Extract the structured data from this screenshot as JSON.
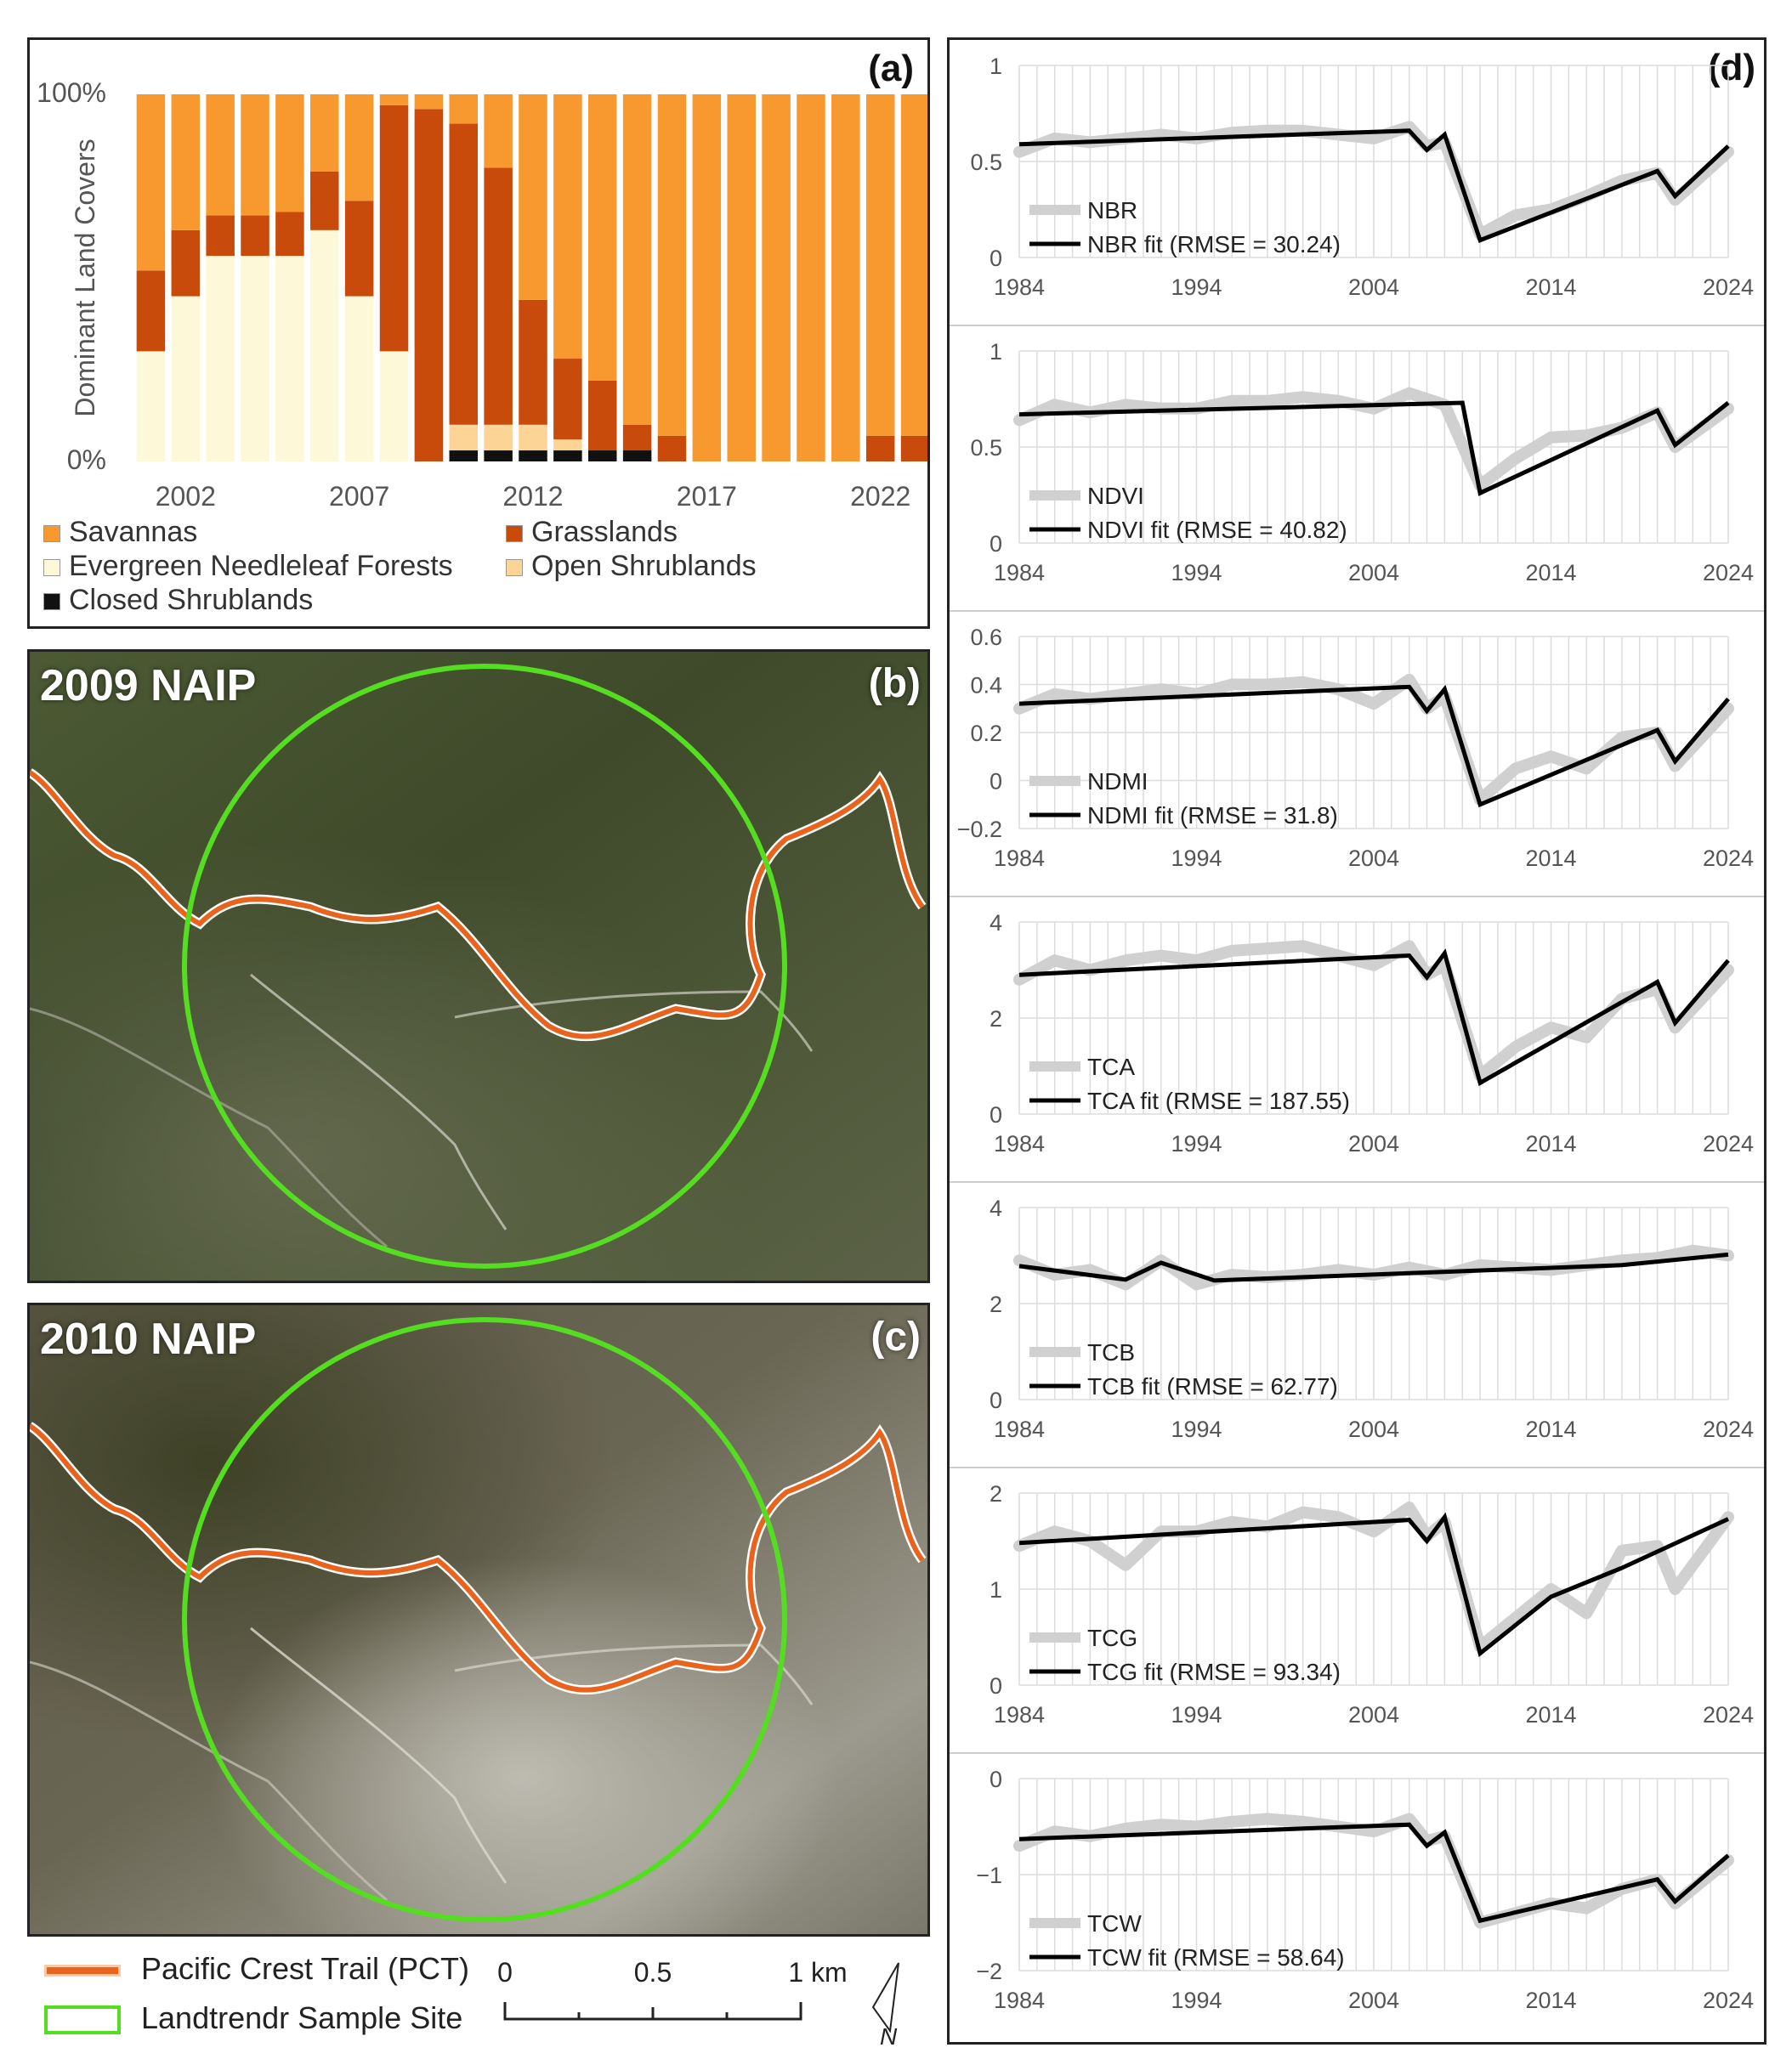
{
  "colors": {
    "savannas": "#F7992F",
    "grasslands": "#C84B0C",
    "evergreen": "#FDF8D8",
    "open_shrub": "#FBD496",
    "closed_shrub": "#111111",
    "observed": "#D0D0D0",
    "fit": "#000000",
    "trail": "#E8641E",
    "site": "#55DD22"
  },
  "panel_a": {
    "tag": "(a)",
    "legend": [
      {
        "key": "savannas",
        "label": "Savannas"
      },
      {
        "key": "grasslands",
        "label": "Grasslands"
      },
      {
        "key": "evergreen",
        "label": "Evergreen Needleleaf Forests"
      },
      {
        "key": "open_shrub",
        "label": "Open Shrublands"
      },
      {
        "key": "closed_shrub",
        "label": "Closed Shrublands"
      }
    ]
  },
  "panel_b": {
    "title": "2009 NAIP",
    "tag": "(b)"
  },
  "panel_c": {
    "title": "2010 NAIP",
    "tag": "(c)"
  },
  "panel_d": {
    "tag": "(d)"
  },
  "map_legend": {
    "trail_label": "Pacific Crest Trail (PCT)",
    "site_label": "Landtrendr Sample Site",
    "scale_labels": [
      "0",
      "0.5",
      "1 km"
    ],
    "north_label": "N"
  },
  "chart_data": [
    {
      "type": "bar",
      "stacked": true,
      "ylabel": "Dominant Land Covers",
      "yticks": [
        "0%",
        "100%"
      ],
      "xticks": [
        "2002",
        "2007",
        "2012",
        "2017",
        "2022"
      ],
      "categories": [
        "2001",
        "2002",
        "2003",
        "2004",
        "2005",
        "2006",
        "2007",
        "2008",
        "2009",
        "2010",
        "2011",
        "2012",
        "2013",
        "2014",
        "2015",
        "2016",
        "2017",
        "2018",
        "2019",
        "2020",
        "2021",
        "2022",
        "2023"
      ],
      "series": [
        {
          "name": "Closed Shrublands",
          "key": "closed_shrub",
          "values": [
            0,
            0,
            0,
            0,
            0,
            0,
            0,
            0,
            0,
            3,
            3,
            3,
            3,
            3,
            3,
            0,
            0,
            0,
            0,
            0,
            0,
            0,
            0
          ]
        },
        {
          "name": "Open Shrublands",
          "key": "open_shrub",
          "values": [
            0,
            0,
            0,
            0,
            0,
            0,
            0,
            0,
            0,
            7,
            7,
            7,
            3,
            0,
            0,
            0,
            0,
            0,
            0,
            0,
            0,
            0,
            0
          ]
        },
        {
          "name": "Evergreen Needleleaf Forests",
          "key": "evergreen",
          "values": [
            30,
            45,
            56,
            56,
            56,
            63,
            45,
            30,
            0,
            0,
            0,
            0,
            0,
            0,
            0,
            0,
            0,
            0,
            0,
            0,
            0,
            0,
            0
          ]
        },
        {
          "name": "Grasslands",
          "key": "grasslands",
          "values": [
            22,
            18,
            11,
            11,
            12,
            16,
            26,
            67,
            96,
            82,
            70,
            34,
            22,
            19,
            7,
            7,
            0,
            0,
            0,
            0,
            0,
            7,
            7
          ]
        },
        {
          "name": "Savannas",
          "key": "savannas",
          "values": [
            48,
            37,
            33,
            33,
            32,
            21,
            29,
            3,
            4,
            8,
            20,
            56,
            72,
            78,
            90,
            93,
            100,
            100,
            100,
            100,
            100,
            93,
            93
          ]
        }
      ]
    },
    {
      "type": "line",
      "name": "NBR",
      "ylim": [
        0,
        1
      ],
      "yticks": [
        "0",
        "0.5",
        "1"
      ],
      "xticks": [
        "1984",
        "1994",
        "2004",
        "2014",
        "2024"
      ],
      "legend": [
        "NBR",
        "NBR fit (RMSE = 30.24)"
      ],
      "fit": [
        [
          1984,
          0.59
        ],
        [
          2006,
          0.66
        ],
        [
          2007,
          0.56
        ],
        [
          2008,
          0.64
        ],
        [
          2010,
          0.09
        ],
        [
          2020,
          0.45
        ],
        [
          2021,
          0.32
        ],
        [
          2024,
          0.58
        ]
      ],
      "observed": [
        [
          1984,
          0.55
        ],
        [
          1986,
          0.62
        ],
        [
          1988,
          0.6
        ],
        [
          1990,
          0.62
        ],
        [
          1992,
          0.64
        ],
        [
          1994,
          0.62
        ],
        [
          1996,
          0.65
        ],
        [
          1998,
          0.66
        ],
        [
          2000,
          0.66
        ],
        [
          2002,
          0.64
        ],
        [
          2004,
          0.62
        ],
        [
          2006,
          0.68
        ],
        [
          2007,
          0.58
        ],
        [
          2008,
          0.6
        ],
        [
          2010,
          0.12
        ],
        [
          2012,
          0.22
        ],
        [
          2014,
          0.25
        ],
        [
          2016,
          0.32
        ],
        [
          2018,
          0.4
        ],
        [
          2020,
          0.44
        ],
        [
          2021,
          0.3
        ],
        [
          2024,
          0.55
        ]
      ]
    },
    {
      "type": "line",
      "name": "NDVI",
      "ylim": [
        0,
        1
      ],
      "yticks": [
        "0",
        "0.5",
        "1"
      ],
      "xticks": [
        "1984",
        "1994",
        "2004",
        "2014",
        "2024"
      ],
      "legend": [
        "NDVI",
        "NDVI fit (RMSE = 40.82)"
      ],
      "fit": [
        [
          1984,
          0.67
        ],
        [
          2009,
          0.73
        ],
        [
          2010,
          0.26
        ],
        [
          2020,
          0.69
        ],
        [
          2021,
          0.51
        ],
        [
          2024,
          0.73
        ]
      ],
      "observed": [
        [
          1984,
          0.64
        ],
        [
          1986,
          0.72
        ],
        [
          1988,
          0.68
        ],
        [
          1990,
          0.72
        ],
        [
          1992,
          0.7
        ],
        [
          1994,
          0.7
        ],
        [
          1996,
          0.74
        ],
        [
          1998,
          0.74
        ],
        [
          2000,
          0.76
        ],
        [
          2002,
          0.74
        ],
        [
          2004,
          0.7
        ],
        [
          2006,
          0.78
        ],
        [
          2008,
          0.72
        ],
        [
          2010,
          0.3
        ],
        [
          2012,
          0.44
        ],
        [
          2014,
          0.55
        ],
        [
          2016,
          0.56
        ],
        [
          2018,
          0.6
        ],
        [
          2020,
          0.68
        ],
        [
          2021,
          0.5
        ],
        [
          2024,
          0.7
        ]
      ]
    },
    {
      "type": "line",
      "name": "NDMI",
      "ylim": [
        -0.2,
        0.6
      ],
      "yticks": [
        "−0.2",
        "0",
        "0.2",
        "0.4",
        "0.6"
      ],
      "xticks": [
        "1984",
        "1994",
        "2004",
        "2014",
        "2024"
      ],
      "legend": [
        "NDMI",
        "NDMI fit (RMSE = 31.8)"
      ],
      "fit": [
        [
          1984,
          0.32
        ],
        [
          2006,
          0.39
        ],
        [
          2007,
          0.29
        ],
        [
          2008,
          0.38
        ],
        [
          2010,
          -0.1
        ],
        [
          2020,
          0.21
        ],
        [
          2021,
          0.08
        ],
        [
          2024,
          0.34
        ]
      ],
      "observed": [
        [
          1984,
          0.3
        ],
        [
          1986,
          0.36
        ],
        [
          1988,
          0.34
        ],
        [
          1990,
          0.36
        ],
        [
          1992,
          0.38
        ],
        [
          1994,
          0.36
        ],
        [
          1996,
          0.4
        ],
        [
          1998,
          0.4
        ],
        [
          2000,
          0.41
        ],
        [
          2002,
          0.38
        ],
        [
          2004,
          0.32
        ],
        [
          2006,
          0.42
        ],
        [
          2007,
          0.3
        ],
        [
          2008,
          0.35
        ],
        [
          2010,
          -0.08
        ],
        [
          2012,
          0.05
        ],
        [
          2014,
          0.1
        ],
        [
          2016,
          0.05
        ],
        [
          2018,
          0.18
        ],
        [
          2020,
          0.2
        ],
        [
          2021,
          0.06
        ],
        [
          2024,
          0.3
        ]
      ]
    },
    {
      "type": "line",
      "name": "TCA",
      "ylim": [
        0,
        4
      ],
      "yticks": [
        "0",
        "2",
        "4"
      ],
      "xticks": [
        "1984",
        "1994",
        "2004",
        "2014",
        "2024"
      ],
      "legend": [
        "TCA",
        "TCA fit (RMSE = 187.55)"
      ],
      "fit": [
        [
          1984,
          2.9
        ],
        [
          2006,
          3.3
        ],
        [
          2007,
          2.85
        ],
        [
          2008,
          3.35
        ],
        [
          2010,
          0.65
        ],
        [
          2020,
          2.75
        ],
        [
          2021,
          1.9
        ],
        [
          2024,
          3.2
        ]
      ],
      "observed": [
        [
          1984,
          2.8
        ],
        [
          1986,
          3.2
        ],
        [
          1988,
          3.0
        ],
        [
          1990,
          3.2
        ],
        [
          1992,
          3.3
        ],
        [
          1994,
          3.2
        ],
        [
          1996,
          3.4
        ],
        [
          1998,
          3.45
        ],
        [
          2000,
          3.5
        ],
        [
          2002,
          3.3
        ],
        [
          2004,
          3.1
        ],
        [
          2006,
          3.5
        ],
        [
          2007,
          2.9
        ],
        [
          2008,
          3.1
        ],
        [
          2010,
          0.8
        ],
        [
          2012,
          1.4
        ],
        [
          2014,
          1.8
        ],
        [
          2016,
          1.6
        ],
        [
          2018,
          2.4
        ],
        [
          2020,
          2.6
        ],
        [
          2021,
          1.8
        ],
        [
          2024,
          3.0
        ]
      ]
    },
    {
      "type": "line",
      "name": "TCB",
      "ylim": [
        0,
        4
      ],
      "yticks": [
        "0",
        "2",
        "4"
      ],
      "xticks": [
        "1984",
        "1994",
        "2004",
        "2014",
        "2024"
      ],
      "legend": [
        "TCB",
        "TCB fit (RMSE = 62.77)"
      ],
      "fit": [
        [
          1984,
          2.78
        ],
        [
          1990,
          2.5
        ],
        [
          1992,
          2.85
        ],
        [
          1995,
          2.48
        ],
        [
          2018,
          2.8
        ],
        [
          2024,
          3.02
        ]
      ],
      "observed": [
        [
          1984,
          2.9
        ],
        [
          1986,
          2.6
        ],
        [
          1988,
          2.7
        ],
        [
          1990,
          2.4
        ],
        [
          1992,
          2.9
        ],
        [
          1994,
          2.4
        ],
        [
          1996,
          2.6
        ],
        [
          1998,
          2.55
        ],
        [
          2000,
          2.6
        ],
        [
          2002,
          2.7
        ],
        [
          2004,
          2.6
        ],
        [
          2006,
          2.75
        ],
        [
          2008,
          2.6
        ],
        [
          2010,
          2.8
        ],
        [
          2012,
          2.75
        ],
        [
          2014,
          2.7
        ],
        [
          2016,
          2.8
        ],
        [
          2018,
          2.9
        ],
        [
          2020,
          2.95
        ],
        [
          2022,
          3.1
        ],
        [
          2024,
          3.0
        ]
      ]
    },
    {
      "type": "line",
      "name": "TCG",
      "ylim": [
        0,
        2
      ],
      "yticks": [
        "0",
        "1",
        "2"
      ],
      "xticks": [
        "1984",
        "1994",
        "2004",
        "2014",
        "2024"
      ],
      "legend": [
        "TCG",
        "TCG fit (RMSE = 93.34)"
      ],
      "fit": [
        [
          1984,
          1.48
        ],
        [
          2006,
          1.72
        ],
        [
          2007,
          1.5
        ],
        [
          2008,
          1.75
        ],
        [
          2010,
          0.33
        ],
        [
          2014,
          0.92
        ],
        [
          2018,
          1.22
        ],
        [
          2024,
          1.73
        ]
      ],
      "observed": [
        [
          1984,
          1.45
        ],
        [
          1986,
          1.6
        ],
        [
          1988,
          1.5
        ],
        [
          1990,
          1.25
        ],
        [
          1992,
          1.6
        ],
        [
          1994,
          1.6
        ],
        [
          1996,
          1.7
        ],
        [
          1998,
          1.65
        ],
        [
          2000,
          1.8
        ],
        [
          2002,
          1.75
        ],
        [
          2004,
          1.6
        ],
        [
          2006,
          1.85
        ],
        [
          2007,
          1.55
        ],
        [
          2008,
          1.7
        ],
        [
          2010,
          0.4
        ],
        [
          2012,
          0.7
        ],
        [
          2014,
          1.0
        ],
        [
          2016,
          0.75
        ],
        [
          2018,
          1.4
        ],
        [
          2020,
          1.45
        ],
        [
          2021,
          1.0
        ],
        [
          2024,
          1.75
        ]
      ]
    },
    {
      "type": "line",
      "name": "TCW",
      "ylim": [
        -2,
        0
      ],
      "yticks": [
        "−2",
        "−1",
        "0"
      ],
      "xticks": [
        "1984",
        "1994",
        "2004",
        "2014",
        "2024"
      ],
      "legend": [
        "TCW",
        "TCW fit (RMSE = 58.64)"
      ],
      "fit": [
        [
          1984,
          -0.63
        ],
        [
          2006,
          -0.48
        ],
        [
          2007,
          -0.7
        ],
        [
          2008,
          -0.56
        ],
        [
          2010,
          -1.48
        ],
        [
          2020,
          -1.05
        ],
        [
          2021,
          -1.28
        ],
        [
          2024,
          -0.8
        ]
      ],
      "observed": [
        [
          1984,
          -0.7
        ],
        [
          1986,
          -0.55
        ],
        [
          1988,
          -0.6
        ],
        [
          1990,
          -0.52
        ],
        [
          1992,
          -0.48
        ],
        [
          1994,
          -0.5
        ],
        [
          1996,
          -0.45
        ],
        [
          1998,
          -0.42
        ],
        [
          2000,
          -0.45
        ],
        [
          2002,
          -0.5
        ],
        [
          2004,
          -0.55
        ],
        [
          2006,
          -0.42
        ],
        [
          2007,
          -0.65
        ],
        [
          2008,
          -0.6
        ],
        [
          2010,
          -1.5
        ],
        [
          2012,
          -1.4
        ],
        [
          2014,
          -1.3
        ],
        [
          2016,
          -1.35
        ],
        [
          2018,
          -1.15
        ],
        [
          2020,
          -1.05
        ],
        [
          2021,
          -1.3
        ],
        [
          2024,
          -0.85
        ]
      ]
    }
  ]
}
